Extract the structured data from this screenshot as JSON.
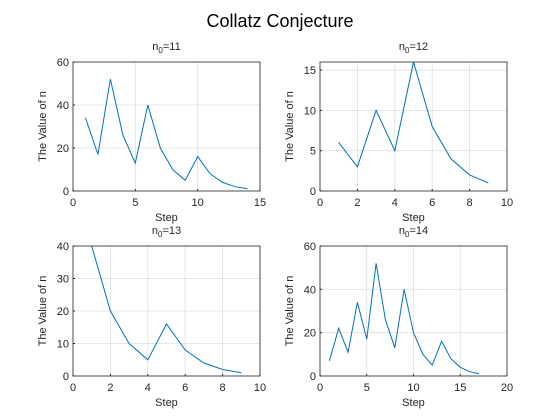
{
  "title": "Collatz Conjecture",
  "chart_data": [
    {
      "type": "line",
      "title": {
        "main": "n",
        "sub": "0",
        "rest": "=11"
      },
      "xlabel": "Step",
      "ylabel": "The Value of n",
      "x": [
        1,
        2,
        3,
        4,
        5,
        6,
        7,
        8,
        9,
        10,
        11,
        12,
        13,
        14
      ],
      "series": [
        {
          "color": "#0072bd",
          "values": [
            34,
            17,
            52,
            26,
            13,
            40,
            20,
            10,
            5,
            16,
            8,
            4,
            2,
            1
          ]
        }
      ],
      "xlim": [
        0,
        15
      ],
      "xticks": [
        0,
        5,
        10,
        15
      ],
      "ylim": [
        0,
        60
      ],
      "yticks": [
        0,
        20,
        40,
        60
      ],
      "grid": true
    },
    {
      "type": "line",
      "title": {
        "main": "n",
        "sub": "0",
        "rest": "=12"
      },
      "xlabel": "Step",
      "ylabel": "The Value of n",
      "x": [
        1,
        2,
        3,
        4,
        5,
        6,
        7,
        8,
        9
      ],
      "series": [
        {
          "color": "#0072bd",
          "values": [
            6,
            3,
            10,
            5,
            16,
            8,
            4,
            2,
            1
          ]
        }
      ],
      "xlim": [
        0,
        10
      ],
      "xticks": [
        0,
        2,
        4,
        6,
        8,
        10
      ],
      "ylim": [
        0,
        16
      ],
      "yticks": [
        0,
        5,
        10,
        15
      ],
      "grid": true
    },
    {
      "type": "line",
      "title": {
        "main": "n",
        "sub": "0",
        "rest": "=13"
      },
      "xlabel": "Step",
      "ylabel": "The Value of n",
      "x": [
        1,
        2,
        3,
        4,
        5,
        6,
        7,
        8,
        9
      ],
      "series": [
        {
          "color": "#0072bd",
          "values": [
            40,
            20,
            10,
            5,
            16,
            8,
            4,
            2,
            1
          ]
        }
      ],
      "xlim": [
        0,
        10
      ],
      "xticks": [
        0,
        2,
        4,
        6,
        8,
        10
      ],
      "ylim": [
        0,
        40
      ],
      "yticks": [
        0,
        10,
        20,
        30,
        40
      ],
      "grid": true
    },
    {
      "type": "line",
      "title": {
        "main": "n",
        "sub": "0",
        "rest": "=14"
      },
      "xlabel": "Step",
      "ylabel": "The Value of n",
      "x": [
        1,
        2,
        3,
        4,
        5,
        6,
        7,
        8,
        9,
        10,
        11,
        12,
        13,
        14,
        15,
        16,
        17
      ],
      "series": [
        {
          "color": "#0072bd",
          "values": [
            7,
            22,
            11,
            34,
            17,
            52,
            26,
            13,
            40,
            20,
            10,
            5,
            16,
            8,
            4,
            2,
            1
          ]
        }
      ],
      "xlim": [
        0,
        20
      ],
      "xticks": [
        0,
        5,
        10,
        15,
        20
      ],
      "ylim": [
        0,
        60
      ],
      "yticks": [
        0,
        20,
        40,
        60
      ],
      "grid": true
    }
  ]
}
